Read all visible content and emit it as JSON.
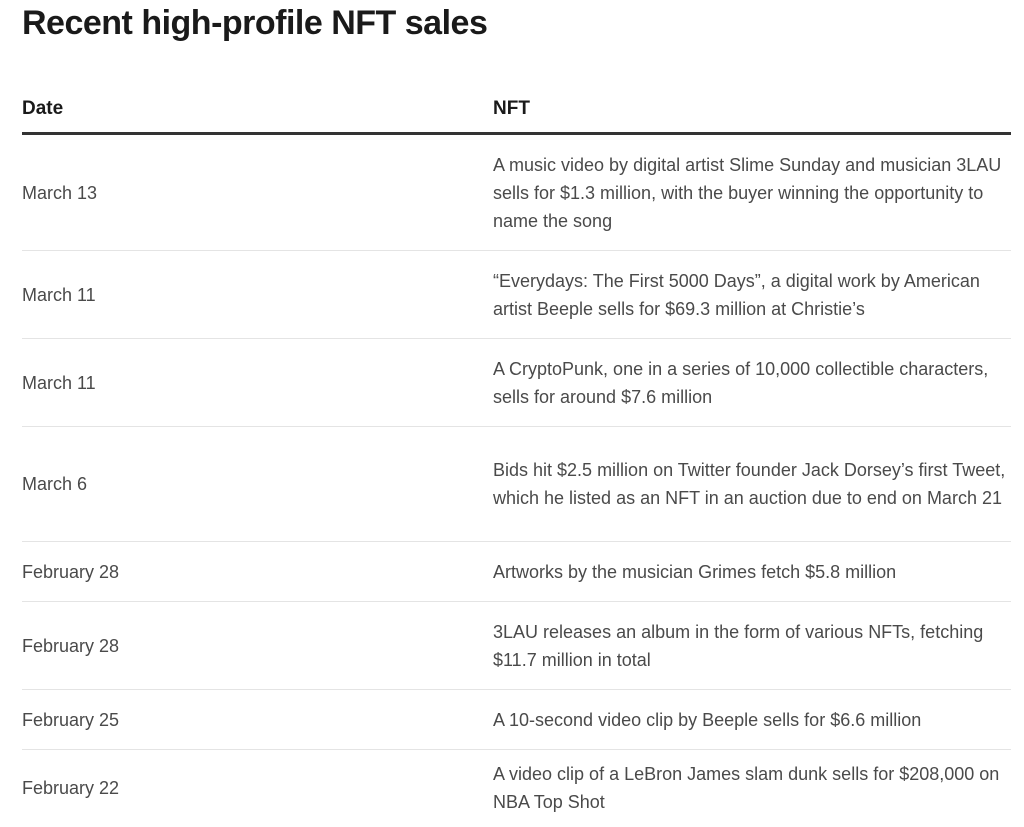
{
  "title": "Recent high-profile NFT sales",
  "table": {
    "headers": {
      "date": "Date",
      "nft": "NFT"
    },
    "rows": [
      {
        "date": "March 13",
        "nft": "A music video by digital artist Slime Sunday and musician 3LAU sells for $1.3 million, with the buyer winning the opportunity to name the song"
      },
      {
        "date": "March 11",
        "nft": "“Everydays: The First 5000 Days”, a digital work by American artist Beeple sells for $69.3 million at Christie’s"
      },
      {
        "date": "March 11",
        "nft": "A CryptoPunk, one in a series of 10,000 collectible characters, sells for around $7.6 million"
      },
      {
        "date": "March 6",
        "nft": "Bids hit $2.5 million on Twitter founder Jack Dorsey’s first Tweet, which he listed as an NFT in an auction due to end on March 21"
      },
      {
        "date": "February 28",
        "nft": "Artworks by the musician Grimes fetch $5.8 million"
      },
      {
        "date": "February 28",
        "nft": "3LAU releases an album in the form of various NFTs, fetching $11.7 million in total"
      },
      {
        "date": "February 25",
        "nft": "A 10-second video clip by Beeple sells for $6.6 million"
      },
      {
        "date": "February 22",
        "nft": "A video clip of a LeBron James slam dunk sells for $208,000 on NBA Top Shot"
      }
    ]
  }
}
